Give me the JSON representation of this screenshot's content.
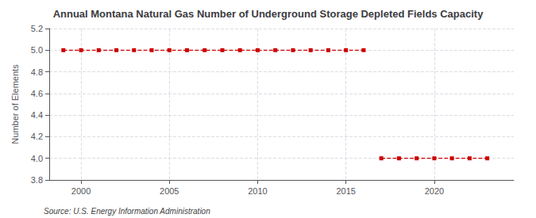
{
  "chart_data": {
    "type": "line",
    "title": "Annual Montana Natural Gas Number of Underground Storage Depleted Fields Capacity",
    "ylabel": "Number of Elements",
    "annotations": [
      "Source: U.S. Energy Information Administration"
    ],
    "series": [
      {
        "color": "#cc0000",
        "marker": "square",
        "line_style": "dashed",
        "x": [
          1999,
          2000,
          2001,
          2002,
          2003,
          2004,
          2005,
          2006,
          2007,
          2008,
          2009,
          2010,
          2011,
          2012,
          2013,
          2014,
          2015,
          2016
        ],
        "values": [
          5,
          5,
          5,
          5,
          5,
          5,
          5,
          5,
          5,
          5,
          5,
          5,
          5,
          5,
          5,
          5,
          5,
          5
        ]
      },
      {
        "color": "#cc0000",
        "marker": "square",
        "line_style": "dashed",
        "x": [
          2017,
          2018,
          2019,
          2020,
          2021,
          2022,
          2023
        ],
        "values": [
          4,
          4,
          4,
          4,
          4,
          4,
          4
        ]
      }
    ],
    "xlim": [
      1998.2,
      2024.5
    ],
    "xticks": [
      2000,
      2005,
      2010,
      2015,
      2020
    ],
    "ylim": [
      3.8,
      5.2
    ],
    "yticks": [
      3.8,
      {
        "value": 4.0,
        "label": "4.0"
      },
      4.2,
      4.4,
      4.6,
      4.8,
      {
        "value": 5.0,
        "label": "5.0"
      },
      5.2
    ],
    "grid": true
  }
}
